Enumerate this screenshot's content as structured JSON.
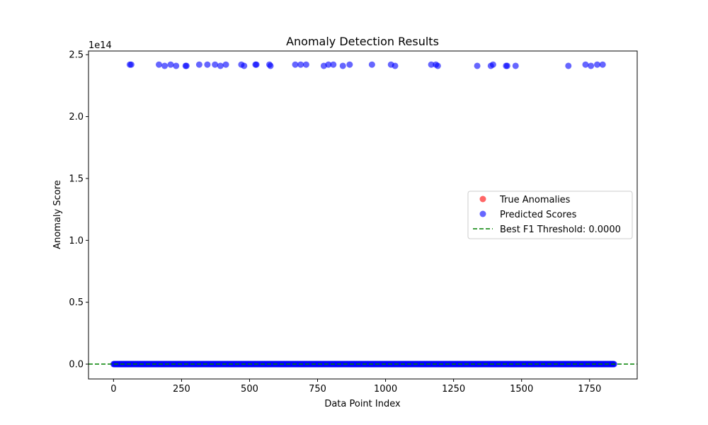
{
  "chart_data": {
    "type": "scatter",
    "title": "Anomaly Detection Results",
    "xlabel": "Data Point Index",
    "ylabel": "Anomaly Score",
    "y_offset_label": "1e14",
    "xlim": [
      -92,
      1925
    ],
    "ylim": [
      -0.12,
      2.53
    ],
    "y_units": "1e14",
    "x_ticks": [
      0,
      250,
      500,
      750,
      1000,
      1250,
      1500,
      1750
    ],
    "x_tick_labels": [
      "0",
      "250",
      "500",
      "750",
      "1000",
      "1250",
      "1500",
      "1750"
    ],
    "y_ticks": [
      0.0,
      0.5,
      1.0,
      1.5,
      2.0,
      2.5
    ],
    "y_tick_labels": [
      "0.0",
      "0.5",
      "1.0",
      "1.5",
      "2.0",
      "2.5"
    ],
    "grid": false,
    "legend_position": "center-right",
    "baseline": {
      "x_range": [
        0,
        1840
      ],
      "value": 0.0,
      "note_shown_as": "dense run of predicted scores at 0"
    },
    "series": [
      {
        "name": "True Anomalies",
        "kind": "scatter",
        "color": "#ff0000",
        "alpha": 0.6,
        "points": []
      },
      {
        "name": "Predicted Scores",
        "kind": "scatter",
        "color": "#0000ff",
        "alpha": 0.6,
        "points": [
          [
            60,
            2.42
          ],
          [
            65,
            2.42
          ],
          [
            167,
            2.42
          ],
          [
            188,
            2.41
          ],
          [
            210,
            2.42
          ],
          [
            230,
            2.41
          ],
          [
            265,
            2.41
          ],
          [
            268,
            2.41
          ],
          [
            315,
            2.42
          ],
          [
            345,
            2.42
          ],
          [
            373,
            2.42
          ],
          [
            393,
            2.41
          ],
          [
            413,
            2.42
          ],
          [
            470,
            2.42
          ],
          [
            480,
            2.41
          ],
          [
            522,
            2.42
          ],
          [
            525,
            2.42
          ],
          [
            573,
            2.42
          ],
          [
            577,
            2.41
          ],
          [
            668,
            2.42
          ],
          [
            688,
            2.42
          ],
          [
            708,
            2.42
          ],
          [
            773,
            2.41
          ],
          [
            790,
            2.42
          ],
          [
            808,
            2.42
          ],
          [
            843,
            2.41
          ],
          [
            868,
            2.42
          ],
          [
            950,
            2.42
          ],
          [
            1020,
            2.42
          ],
          [
            1035,
            2.41
          ],
          [
            1168,
            2.42
          ],
          [
            1185,
            2.42
          ],
          [
            1192,
            2.41
          ],
          [
            1337,
            2.41
          ],
          [
            1387,
            2.41
          ],
          [
            1395,
            2.42
          ],
          [
            1443,
            2.41
          ],
          [
            1447,
            2.41
          ],
          [
            1478,
            2.41
          ],
          [
            1672,
            2.41
          ],
          [
            1735,
            2.42
          ],
          [
            1755,
            2.41
          ],
          [
            1778,
            2.42
          ],
          [
            1798,
            2.42
          ]
        ]
      },
      {
        "name": "Best F1 Threshold: 0.0000",
        "kind": "hline",
        "color": "#008000",
        "style": "dashed",
        "y": 0.0
      }
    ]
  }
}
